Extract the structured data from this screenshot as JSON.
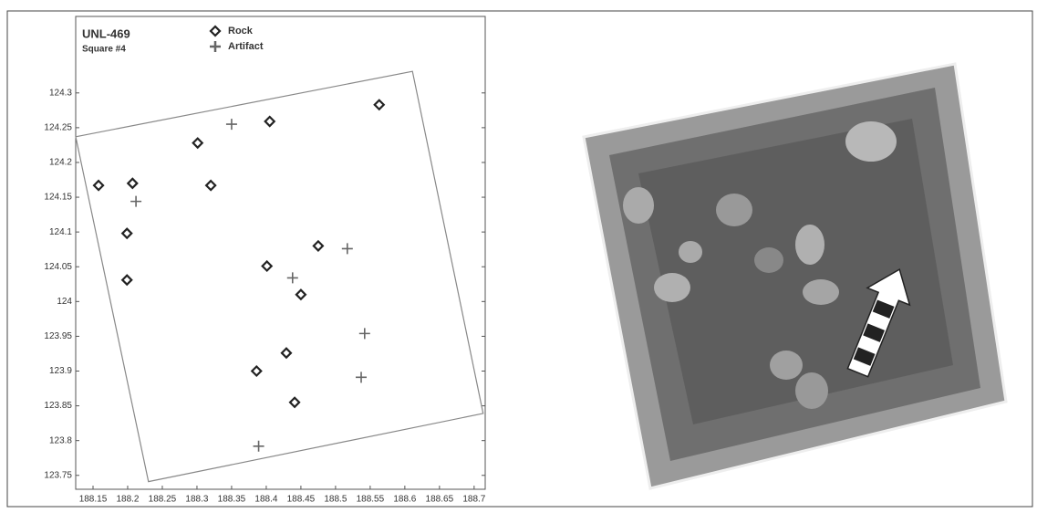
{
  "chart_data": {
    "type": "scatter",
    "title": "UNL-469",
    "subtitle": "Square #4",
    "series": [
      {
        "name": "Rock",
        "color": "#222222",
        "marker": "diamond",
        "x": [
          188.158,
          188.207,
          188.301,
          188.32,
          188.199,
          188.199,
          188.405,
          188.563,
          188.475,
          188.401,
          188.45,
          188.429,
          188.386,
          188.441
        ],
        "y": [
          124.167,
          124.17,
          124.228,
          124.167,
          124.098,
          124.031,
          124.259,
          124.283,
          124.08,
          124.051,
          124.01,
          123.926,
          123.9,
          123.855
        ]
      },
      {
        "name": "Artifact",
        "color": "#666666",
        "marker": "plus",
        "x": [
          188.35,
          188.212,
          188.517,
          188.438,
          188.542,
          188.537,
          188.389
        ],
        "y": [
          124.255,
          124.144,
          124.076,
          124.034,
          123.954,
          123.891,
          123.792
        ]
      }
    ],
    "outline": {
      "x": [
        188.125,
        188.611,
        188.713,
        188.23
      ],
      "y": [
        124.237,
        124.331,
        123.839,
        123.741
      ]
    },
    "xlim": [
      188.125,
      188.716
    ],
    "ylim": [
      123.73,
      124.41
    ],
    "xticks": [
      188.15,
      188.2,
      188.25,
      188.3,
      188.35,
      188.4,
      188.45,
      188.5,
      188.55,
      188.6,
      188.65,
      188.7
    ],
    "yticks": [
      123.75,
      123.8,
      123.85,
      123.9,
      123.95,
      124,
      124.05,
      124.1,
      124.15,
      124.2,
      124.25,
      124.3
    ],
    "grid": false
  }
}
